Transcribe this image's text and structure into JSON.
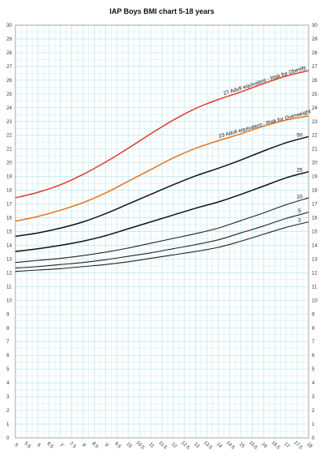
{
  "chart_data": {
    "type": "line",
    "title": "IAP Boys BMI chart 5-18 years",
    "xlabel": "",
    "ylabel": "",
    "xlim": [
      5,
      18
    ],
    "ylim": [
      0,
      30
    ],
    "x_ticks": [
      5,
      5.5,
      6,
      6.5,
      7,
      7.5,
      8,
      8.5,
      9,
      9.5,
      10,
      10.5,
      11,
      11.5,
      12,
      12.5,
      13,
      13.5,
      14,
      14.5,
      15,
      15.5,
      16,
      16.5,
      17,
      17.5,
      18
    ],
    "y_ticks": [
      0,
      1,
      2,
      3,
      4,
      5,
      6,
      7,
      8,
      9,
      10,
      11,
      12,
      13,
      14,
      15,
      16,
      17,
      18,
      19,
      20,
      21,
      22,
      23,
      24,
      25,
      26,
      27,
      28,
      29,
      30
    ],
    "grid": true,
    "x": [
      5,
      6,
      7,
      8,
      9,
      10,
      11,
      12,
      13,
      14,
      15,
      16,
      17,
      18
    ],
    "series": [
      {
        "name": "3",
        "color": "#222222",
        "values": [
          12.1,
          12.2,
          12.3,
          12.45,
          12.6,
          12.8,
          13.05,
          13.3,
          13.55,
          13.85,
          14.3,
          14.8,
          15.3,
          15.7
        ]
      },
      {
        "name": "5",
        "color": "#222222",
        "values": [
          12.35,
          12.45,
          12.6,
          12.75,
          12.95,
          13.2,
          13.45,
          13.75,
          14.05,
          14.4,
          14.9,
          15.4,
          15.95,
          16.4
        ]
      },
      {
        "name": "10",
        "color": "#222222",
        "values": [
          12.75,
          12.9,
          13.05,
          13.25,
          13.5,
          13.8,
          14.15,
          14.5,
          14.85,
          15.25,
          15.8,
          16.35,
          16.95,
          17.45
        ]
      },
      {
        "name": "25",
        "color": "#111111",
        "values": [
          13.55,
          13.75,
          14.0,
          14.3,
          14.7,
          15.2,
          15.7,
          16.2,
          16.7,
          17.15,
          17.7,
          18.3,
          18.9,
          19.35
        ]
      },
      {
        "name": "50",
        "color": "#111111",
        "values": [
          14.65,
          14.9,
          15.25,
          15.7,
          16.3,
          17.0,
          17.7,
          18.4,
          19.05,
          19.6,
          20.2,
          20.85,
          21.45,
          21.9
        ]
      },
      {
        "name": "23 Adult equivalent - Risk for Overweight",
        "color": "#e87417",
        "values": [
          15.75,
          16.1,
          16.55,
          17.1,
          17.8,
          18.65,
          19.5,
          20.35,
          21.05,
          21.6,
          22.1,
          22.65,
          23.1,
          23.4
        ]
      },
      {
        "name": "27 Adult equivalent - Risk for Obesity",
        "color": "#e23a2a",
        "values": [
          17.45,
          17.85,
          18.4,
          19.15,
          20.05,
          21.05,
          22.1,
          23.1,
          23.95,
          24.6,
          25.15,
          25.75,
          26.3,
          26.7
        ]
      }
    ],
    "colors": {
      "grid": "#b9e7ee",
      "background": "#ffffff",
      "axis": "#999999"
    }
  }
}
